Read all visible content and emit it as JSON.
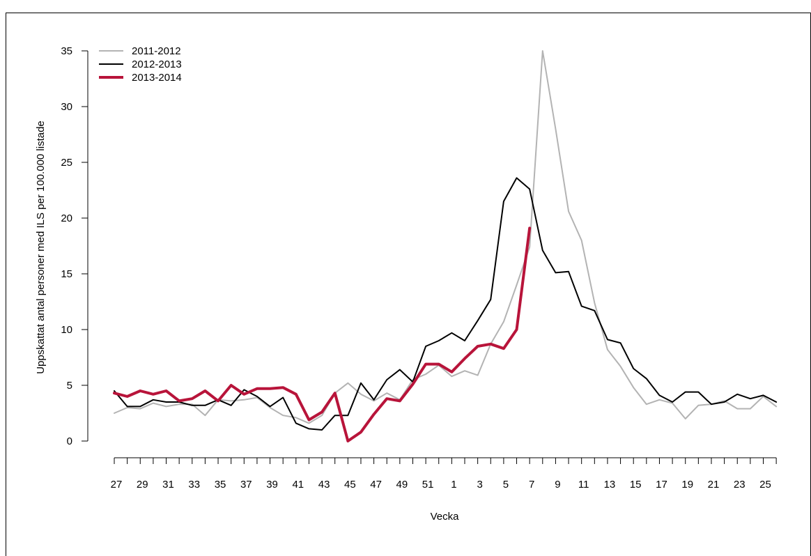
{
  "header": {
    "title": ""
  },
  "chart_data": {
    "type": "line",
    "title": "",
    "xlabel": "Vecka",
    "ylabel": "Uppskattat antal personer med ILS per 100.000 listade",
    "ylim": [
      0,
      35
    ],
    "yticks": [
      "0",
      "5",
      "10",
      "15",
      "20",
      "25",
      "30",
      "35"
    ],
    "weeks": [
      27,
      28,
      29,
      30,
      31,
      32,
      33,
      34,
      35,
      36,
      37,
      38,
      39,
      40,
      41,
      42,
      43,
      44,
      45,
      46,
      47,
      48,
      49,
      50,
      51,
      52,
      1,
      2,
      3,
      4,
      5,
      6,
      7,
      8,
      9,
      10,
      11,
      12,
      13,
      14,
      15,
      16,
      17,
      18,
      19,
      20,
      21,
      22,
      23,
      24,
      25,
      26
    ],
    "xtick_labels": [
      "27",
      "29",
      "31",
      "33",
      "35",
      "37",
      "39",
      "41",
      "43",
      "45",
      "47",
      "49",
      "51",
      "1",
      "3",
      "5",
      "7",
      "9",
      "11",
      "13",
      "15",
      "17",
      "19",
      "21",
      "23",
      "25"
    ],
    "legend_position": "top-left",
    "series": [
      {
        "name": "2011-2012",
        "color": "#b3b3b3",
        "values": [
          2.5,
          3.0,
          2.9,
          3.4,
          3.1,
          3.3,
          3.3,
          2.3,
          3.7,
          3.6,
          3.7,
          3.9,
          3.0,
          2.3,
          2.1,
          1.6,
          2.3,
          4.3,
          5.2,
          4.2,
          3.6,
          4.3,
          3.7,
          5.5,
          6.0,
          6.8,
          5.8,
          6.3,
          5.9,
          8.7,
          10.7,
          14.0,
          17.4,
          35.0,
          28.0,
          20.6,
          18.0,
          12.4,
          8.2,
          6.7,
          4.8,
          3.3,
          3.7,
          3.4,
          2.0,
          3.2,
          3.3,
          3.6,
          2.9,
          2.9,
          4.0,
          3.1
        ]
      },
      {
        "name": "2012-2013",
        "color": "#000000",
        "values": [
          4.5,
          3.1,
          3.1,
          3.7,
          3.5,
          3.5,
          3.2,
          3.2,
          3.7,
          3.2,
          4.6,
          4.0,
          3.1,
          3.9,
          1.6,
          1.1,
          1.0,
          2.3,
          2.3,
          5.2,
          3.7,
          5.5,
          6.4,
          5.3,
          8.5,
          9.0,
          9.7,
          9.0,
          10.8,
          12.7,
          21.5,
          23.6,
          22.6,
          17.1,
          15.1,
          15.2,
          12.1,
          11.7,
          9.1,
          8.8,
          6.5,
          5.6,
          4.1,
          3.5,
          4.4,
          4.4,
          3.3,
          3.5,
          4.2,
          3.8,
          4.1,
          3.5
        ]
      },
      {
        "name": "2013-2014",
        "color": "#b8143a",
        "values": [
          4.3,
          4.0,
          4.5,
          4.2,
          4.5,
          3.6,
          3.8,
          4.5,
          3.6,
          5.0,
          4.2,
          4.7,
          4.7,
          4.8,
          4.2,
          1.9,
          2.6,
          4.3,
          0.0,
          0.8,
          2.4,
          3.8,
          3.6,
          5.1,
          6.9,
          6.9,
          6.2,
          7.4,
          8.5,
          8.7,
          8.3,
          10.0,
          19.1,
          null,
          null,
          null,
          null,
          null,
          null,
          null,
          null,
          null,
          null,
          null,
          null,
          null,
          null,
          null,
          null,
          null,
          null,
          null
        ]
      }
    ]
  }
}
